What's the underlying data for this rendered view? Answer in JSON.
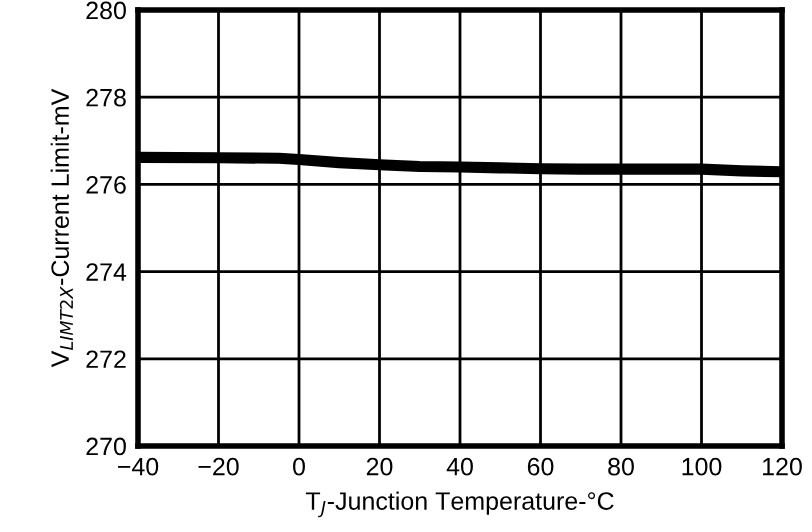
{
  "chart_data": {
    "type": "line",
    "xlabel": "T$_{J}$-Junction Temperature-°C",
    "ylabel": "V$_{LIMT2X}$-Current Limit-mV",
    "x": [
      -40,
      -20,
      -5,
      0,
      10,
      20,
      30,
      40,
      50,
      60,
      70,
      80,
      100,
      110,
      120
    ],
    "series": [
      {
        "color": "#000000",
        "values": [
          276.62,
          276.61,
          276.6,
          276.57,
          276.5,
          276.45,
          276.41,
          276.4,
          276.38,
          276.36,
          276.35,
          276.35,
          276.35,
          276.31,
          276.29
        ]
      }
    ],
    "xlim": [
      -40,
      120
    ],
    "ylim": [
      270,
      280
    ],
    "xticks": [
      {
        "value": -40,
        "label": "−40"
      },
      {
        "value": -20,
        "label": "−20"
      },
      0,
      20,
      40,
      60,
      80,
      100,
      120
    ],
    "yticks": [
      270,
      272,
      274,
      276,
      278,
      280
    ],
    "grid": true,
    "marker": "none",
    "line_style": "solid"
  }
}
